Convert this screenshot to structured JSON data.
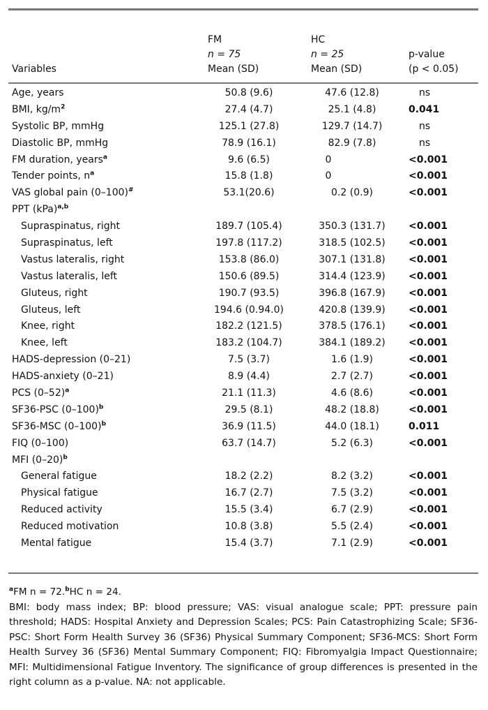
{
  "header": {
    "variables": "Variables",
    "fm": {
      "group": "FM",
      "n": "n = 75",
      "stat": "Mean (SD)"
    },
    "hc": {
      "group": "HC",
      "n": "n = 25",
      "stat": "Mean (SD)"
    },
    "p": {
      "line1": "p-value",
      "line2": "(p < 0.05)"
    }
  },
  "rows": [
    {
      "label": "Age, years",
      "sup": "",
      "fm": "50.8 (9.6)",
      "hc": "47.6 (12.8)",
      "p": "ns"
    },
    {
      "label": "BMI, kg/m",
      "sup": "2",
      "fm": "27.4 (4.7)",
      "hc": "25.1 (4.8)",
      "p": "0.041"
    },
    {
      "label": "Systolic BP, mmHg",
      "sup": "",
      "fm": "125.1 (27.8)",
      "hc": "129.7 (14.7)",
      "p": "ns"
    },
    {
      "label": "Diastolic BP, mmHg",
      "sup": "",
      "fm": "78.9 (16.1)",
      "hc": "82.9 (7.8)",
      "p": "ns"
    },
    {
      "label": "FM duration, years",
      "sup": "a",
      "fm": "9.6 (6.5)",
      "hc": "0",
      "p": "<0.001"
    },
    {
      "label": "Tender points, n",
      "sup": "a",
      "fm": "15.8 (1.8)",
      "hc": "0",
      "p": "<0.001"
    },
    {
      "label": "VAS global pain (0–100)",
      "sup": "#",
      "fm": "53.1(20.6)",
      "hc": "0.2 (0.9)",
      "p": "<0.001"
    },
    {
      "label": "PPT (kPa)",
      "sup": "a,b",
      "fm": "",
      "hc": "",
      "p": ""
    },
    {
      "label": "Supraspinatus, right",
      "sub": true,
      "fm": "189.7 (105.4)",
      "hc": "350.3 (131.7)",
      "p": "<0.001"
    },
    {
      "label": "Supraspinatus, left",
      "sub": true,
      "fm": "197.8 (117.2)",
      "hc": "318.5 (102.5)",
      "p": "<0.001"
    },
    {
      "label": "Vastus lateralis, right",
      "sub": true,
      "fm": "153.8 (86.0)",
      "hc": "307.1 (131.8)",
      "p": "<0.001"
    },
    {
      "label": "Vastus lateralis, left",
      "sub": true,
      "fm": "150.6 (89.5)",
      "hc": "314.4 (123.9)",
      "p": "<0.001"
    },
    {
      "label": "Gluteus, right",
      "sub": true,
      "fm": "190.7 (93.5)",
      "hc": "396.8 (167.9)",
      "p": "<0.001"
    },
    {
      "label": "Gluteus, left",
      "sub": true,
      "fm": "194.6 (0.94.0)",
      "hc": "420.8 (139.9)",
      "p": "<0.001"
    },
    {
      "label": "Knee, right",
      "sub": true,
      "fm": "182.2 (121.5)",
      "hc": "378.5 (176.1)",
      "p": "<0.001"
    },
    {
      "label": "Knee, left",
      "sub": true,
      "fm": "183.2 (104.7)",
      "hc": "384.1 (189.2)",
      "p": "<0.001"
    },
    {
      "label": "HADS-depression (0–21)",
      "sup": "",
      "fm": "7.5 (3.7)",
      "hc": "1.6 (1.9)",
      "p": "<0.001"
    },
    {
      "label": "HADS-anxiety (0–21)",
      "sup": "",
      "fm": "8.9 (4.4)",
      "hc": "2.7 (2.7)",
      "p": "<0.001"
    },
    {
      "label": "PCS (0–52)",
      "sup": "a",
      "fm": "21.1 (11.3)",
      "hc": "4.6 (8.6)",
      "p": "<0.001"
    },
    {
      "label": "SF36-PSC (0–100)",
      "sup": "b",
      "fm": "29.5 (8.1)",
      "hc": "48.2 (18.8)",
      "p": "<0.001"
    },
    {
      "label": "SF36-MSC (0–100)",
      "sup": "b",
      "fm": "36.9 (11.5)",
      "hc": "44.0 (18.1)",
      "p": "0.011"
    },
    {
      "label": "FIQ (0–100)",
      "sup": "",
      "fm": "63.7 (14.7)",
      "hc": "5.2 (6.3)",
      "p": "<0.001"
    },
    {
      "label": "MFI (0–20)",
      "sup": "b",
      "fm": "",
      "hc": "",
      "p": ""
    },
    {
      "label": "General fatigue",
      "sub": true,
      "fm": "18.2 (2.2)",
      "hc": "8.2 (3.2)",
      "p": "<0.001"
    },
    {
      "label": "Physical fatigue",
      "sub": true,
      "fm": "16.7 (2.7)",
      "hc": "7.5 (3.2)",
      "p": "<0.001"
    },
    {
      "label": "Reduced activity",
      "sub": true,
      "fm": "15.5 (3.4)",
      "hc": "6.7 (2.9)",
      "p": "<0.001"
    },
    {
      "label": "Reduced motivation",
      "sub": true,
      "fm": "10.8 (3.8)",
      "hc": "5.5 (2.4)",
      "p": "<0.001"
    },
    {
      "label": "Mental fatigue",
      "sub": true,
      "fm": "15.4 (3.7)",
      "hc": "7.1 (2.9)",
      "p": "<0.001"
    }
  ],
  "notes": {
    "footnote_a_mark": "a",
    "footnote_a": "FM n = 72.",
    "footnote_b_mark": "b",
    "footnote_b": "HC n = 24.",
    "abbreviations": "BMI: body mass index; BP: blood pressure; VAS: visual analogue scale; PPT: pressure pain threshold; HADS: Hospital Anxiety and Depression Scales; PCS: Pain Catastrophizing Scale; SF36-PSC: Short Form Health Survey 36 (SF36) Physical Summary Component; SF36-MCS: Short Form Health Survey 36 (SF36) Mental Summary Component; FIQ: Fibromyalgia Impact Questionnaire; MFI: Multidimensional Fatigue Inventory. The significance of group differences is presented in the right column as a p-value. NA: not applicable."
  }
}
